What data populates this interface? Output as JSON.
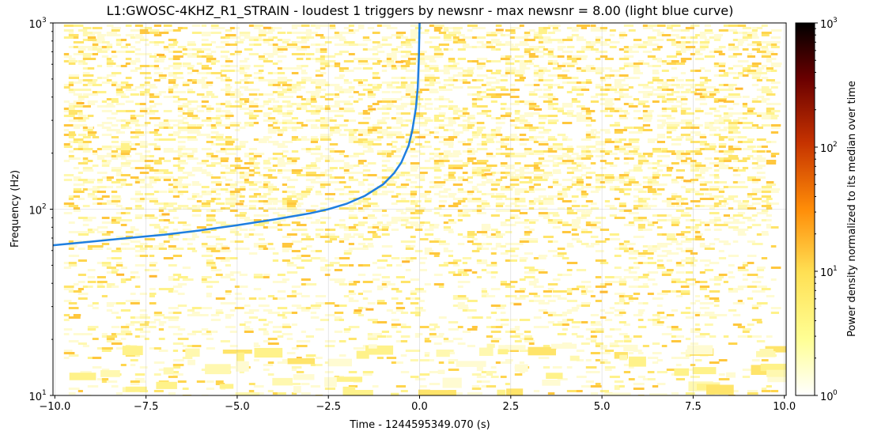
{
  "chart_data": {
    "type": "heatmap",
    "title": "L1:GWOSC-4KHZ_R1_STRAIN - loudest 1 triggers by newsnr - max newsnr = 8.00 (light blue curve)",
    "xlabel": "Time - 1244595349.070 (s)",
    "ylabel": "Frequency (Hz)",
    "colorbar_label": "Power density normalized to its median over time",
    "xlim": [
      -10.05,
      10.05
    ],
    "ylim": [
      10,
      1000
    ],
    "yscale": "log",
    "colorbar_scale": "log",
    "colorbar_range": [
      1,
      1000
    ],
    "colormap": "afmhot_r",
    "grid": true,
    "x_ticks": [
      -10,
      -7.5,
      -5,
      -2.5,
      0,
      2.5,
      5,
      7.5,
      10
    ],
    "x_tick_labels": [
      "−10.0",
      "−7.5",
      "−5.0",
      "−2.5",
      "0.0",
      "2.5",
      "5.0",
      "7.5",
      "10.0"
    ],
    "y_ticks": [
      10,
      100,
      1000
    ],
    "y_tick_labels": [
      "10",
      "10",
      "10"
    ],
    "y_tick_exponents": [
      "1",
      "2",
      "3"
    ],
    "colorbar_ticks": [
      1,
      10,
      100,
      1000
    ],
    "colorbar_tick_labels": [
      "10",
      "10",
      "10",
      "10"
    ],
    "colorbar_tick_exponents": [
      "0",
      "1",
      "2",
      "3"
    ],
    "series": [
      {
        "color": "#1f7fe0",
        "x": [
          -10.05,
          -9,
          -8,
          -7,
          -6,
          -5,
          -4,
          -3,
          -2.5,
          -2,
          -1.5,
          -1,
          -0.7,
          -0.5,
          -0.3,
          -0.2,
          -0.1,
          -0.05,
          -0.02,
          0
        ],
        "y": [
          64,
          67,
          70,
          73,
          77,
          82,
          88,
          95,
          100,
          107,
          118,
          136,
          156,
          178,
          220,
          265,
          350,
          450,
          650,
          1000
        ]
      }
    ]
  }
}
